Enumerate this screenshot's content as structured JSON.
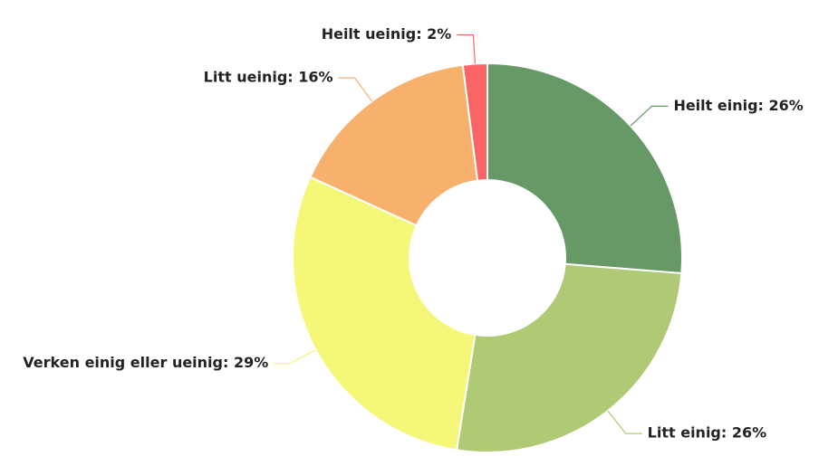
{
  "chart_data": {
    "type": "donut",
    "labels": [
      "Heilt einig: 26%",
      "Litt einig: 26%",
      "Verken einig eller ueinig: 29%",
      "Litt ueinig: 16%",
      "Heilt ueinig: 2%"
    ],
    "values": [
      26,
      26,
      29,
      16,
      2
    ],
    "colors": [
      "#669966",
      "#b0c974",
      "#f5f778",
      "#f8b06d",
      "#f96464"
    ]
  }
}
